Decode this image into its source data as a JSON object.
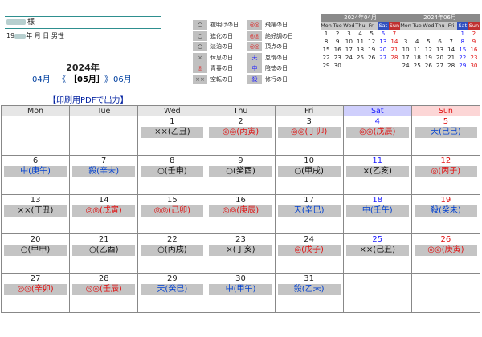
{
  "user": {
    "name_suffix": "様",
    "birth_year_prefix": "19",
    "birth_rest": "年 月 日 男性"
  },
  "year": "2024年",
  "nav": {
    "prev": "04月",
    "prev_arrow": "《",
    "current": "［05月］",
    "next_arrow": "》",
    "next": "06月"
  },
  "pdf_link": "【印刷用PDFで出力】",
  "legend": {
    "left": [
      {
        "mark": "○",
        "label": "夜明けの日",
        "mark_color": "#111"
      },
      {
        "mark": "○",
        "label": "進化の日",
        "mark_color": "#111"
      },
      {
        "mark": "○",
        "label": "淡泊の日",
        "mark_color": "#111"
      },
      {
        "mark": "×",
        "label": "休息の日",
        "mark_color": "#555"
      },
      {
        "mark": "◎",
        "label": "青春の日",
        "mark_color": "#e01010"
      },
      {
        "mark": "××",
        "label": "空転の日",
        "mark_color": "#555"
      }
    ],
    "right": [
      {
        "mark": "◎◎",
        "label": "飛躍の日",
        "mark_color": "#e01010"
      },
      {
        "mark": "◎◎",
        "label": "絶好調の日",
        "mark_color": "#e01010"
      },
      {
        "mark": "◎◎",
        "label": "頂点の日",
        "mark_color": "#e01010"
      },
      {
        "mark": "天",
        "label": "怠惰の日",
        "mark_color": "#1a1aff"
      },
      {
        "mark": "中",
        "label": "陰徳の日",
        "mark_color": "#1a1aff"
      },
      {
        "mark": "殺",
        "label": "修行の日",
        "mark_color": "#1a1aff"
      }
    ]
  },
  "mini_calendars": [
    {
      "title": "2024年04月",
      "headers": [
        "Mon",
        "Tue",
        "Wed",
        "Thu",
        "Fri",
        "Sat",
        "Sun"
      ],
      "weeks": [
        [
          "1",
          "2",
          "3",
          "4",
          "5",
          "6",
          "7"
        ],
        [
          "8",
          "9",
          "10",
          "11",
          "12",
          "13",
          "14"
        ],
        [
          "15",
          "16",
          "17",
          "18",
          "19",
          "20",
          "21"
        ],
        [
          "22",
          "23",
          "24",
          "25",
          "26",
          "27",
          "28"
        ],
        [
          "29",
          "30",
          "",
          "",
          "",
          "",
          ""
        ]
      ]
    },
    {
      "title": "2024年06月",
      "headers": [
        "Mon",
        "Tue",
        "Wed",
        "Thu",
        "Fri",
        "Sat",
        "Sun"
      ],
      "weeks": [
        [
          "",
          "",
          "",
          "",
          "",
          "1",
          "2"
        ],
        [
          "3",
          "4",
          "5",
          "6",
          "7",
          "8",
          "9"
        ],
        [
          "10",
          "11",
          "12",
          "13",
          "14",
          "15",
          "16"
        ],
        [
          "17",
          "18",
          "19",
          "20",
          "21",
          "22",
          "23"
        ],
        [
          "24",
          "25",
          "26",
          "27",
          "28",
          "29",
          "30"
        ]
      ]
    }
  ],
  "grid": {
    "headers": [
      "Mon",
      "Tue",
      "Wed",
      "Thu",
      "Fri",
      "Sat",
      "Sun"
    ],
    "weeks": [
      [
        null,
        null,
        {
          "day": "1",
          "text": "××(乙丑)",
          "color": "blk"
        },
        {
          "day": "2",
          "text": "◎◎(丙寅)",
          "color": "red"
        },
        {
          "day": "3",
          "text": "◎◎(丁卯)",
          "color": "red"
        },
        {
          "day": "4",
          "text": "◎◎(戊辰)",
          "color": "red"
        },
        {
          "day": "5",
          "text": "天(己巳)",
          "color": "blue"
        }
      ],
      [
        {
          "day": "6",
          "text": "中(庚午)",
          "color": "blue"
        },
        {
          "day": "7",
          "text": "殺(辛未)",
          "color": "blue"
        },
        {
          "day": "8",
          "text": "○(壬申)",
          "color": "blk"
        },
        {
          "day": "9",
          "text": "○(癸酉)",
          "color": "blk"
        },
        {
          "day": "10",
          "text": "○(甲戌)",
          "color": "blk"
        },
        {
          "day": "11",
          "text": "×(乙亥)",
          "color": "blk"
        },
        {
          "day": "12",
          "text": "◎(丙子)",
          "color": "red"
        }
      ],
      [
        {
          "day": "13",
          "text": "××(丁丑)",
          "color": "blk"
        },
        {
          "day": "14",
          "text": "◎◎(戊寅)",
          "color": "red"
        },
        {
          "day": "15",
          "text": "◎◎(己卯)",
          "color": "red"
        },
        {
          "day": "16",
          "text": "◎◎(庚辰)",
          "color": "red"
        },
        {
          "day": "17",
          "text": "天(辛巳)",
          "color": "blue"
        },
        {
          "day": "18",
          "text": "中(壬午)",
          "color": "blue"
        },
        {
          "day": "19",
          "text": "殺(癸未)",
          "color": "blue"
        }
      ],
      [
        {
          "day": "20",
          "text": "○(甲申)",
          "color": "blk"
        },
        {
          "day": "21",
          "text": "○(乙酉)",
          "color": "blk"
        },
        {
          "day": "22",
          "text": "○(丙戌)",
          "color": "blk"
        },
        {
          "day": "23",
          "text": "×(丁亥)",
          "color": "blk"
        },
        {
          "day": "24",
          "text": "◎(戊子)",
          "color": "red"
        },
        {
          "day": "25",
          "text": "××(己丑)",
          "color": "blk"
        },
        {
          "day": "26",
          "text": "◎◎(庚寅)",
          "color": "red"
        }
      ],
      [
        {
          "day": "27",
          "text": "◎◎(辛卯)",
          "color": "red"
        },
        {
          "day": "28",
          "text": "◎◎(壬辰)",
          "color": "red"
        },
        {
          "day": "29",
          "text": "天(癸巳)",
          "color": "blue"
        },
        {
          "day": "30",
          "text": "中(甲午)",
          "color": "blue"
        },
        {
          "day": "31",
          "text": "殺(乙未)",
          "color": "blue"
        },
        null,
        null
      ]
    ]
  }
}
